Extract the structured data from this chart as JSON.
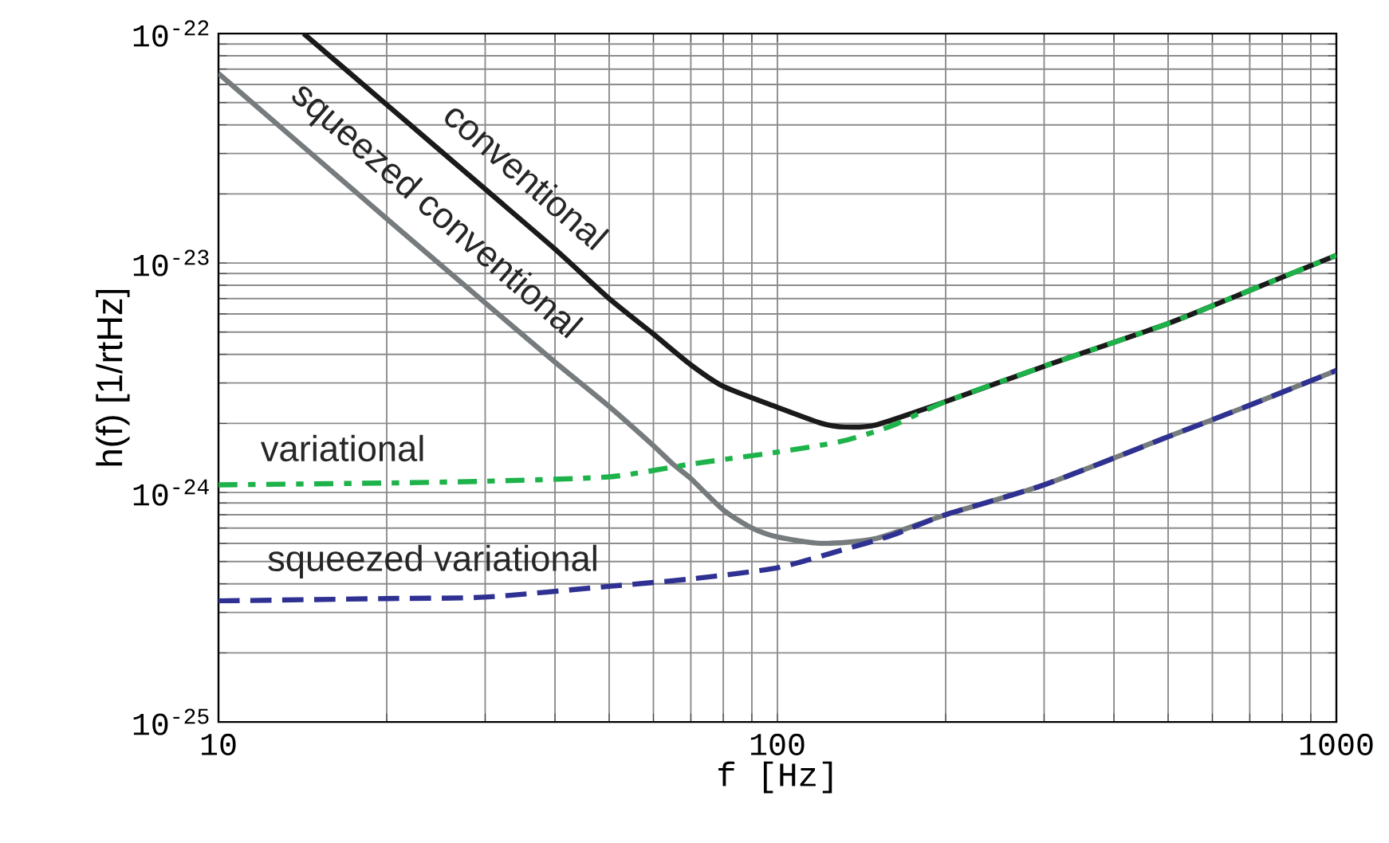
{
  "chart_data": {
    "type": "line",
    "xlabel": "f [Hz]",
    "ylabel": "h(f) [1/rtHz]",
    "log": "xy",
    "grid": true,
    "marker": "none",
    "xlim": [
      10,
      1000
    ],
    "xticks": [
      10,
      {
        "value": 20,
        "label": null
      },
      {
        "value": 30,
        "label": null
      },
      {
        "value": 40,
        "label": null
      },
      {
        "value": 50,
        "label": null
      },
      {
        "value": 60,
        "label": null
      },
      {
        "value": 70,
        "label": null
      },
      {
        "value": 80,
        "label": null
      },
      {
        "value": 90,
        "label": null
      },
      100,
      {
        "value": 200,
        "label": null
      },
      {
        "value": 300,
        "label": null
      },
      {
        "value": 400,
        "label": null
      },
      {
        "value": 500,
        "label": null
      },
      {
        "value": 600,
        "label": null
      },
      {
        "value": 700,
        "label": null
      },
      {
        "value": 800,
        "label": null
      },
      {
        "value": 900,
        "label": null
      },
      1000
    ],
    "ylim": [
      1e-25,
      1e-22
    ],
    "yticks": [
      {
        "value": 1e-25,
        "label": "10$^{-25}$"
      },
      {
        "value": 2e-25,
        "label": null
      },
      {
        "value": 3e-25,
        "label": null
      },
      {
        "value": 4e-25,
        "label": null
      },
      {
        "value": 5e-25,
        "label": null
      },
      {
        "value": 6e-25,
        "label": null
      },
      {
        "value": 7e-25,
        "label": null
      },
      {
        "value": 8e-25,
        "label": null
      },
      {
        "value": 9e-25,
        "label": null
      },
      {
        "value": 1e-24,
        "label": "10$^{-24}$"
      },
      {
        "value": 2e-24,
        "label": null
      },
      {
        "value": 3e-24,
        "label": null
      },
      {
        "value": 4e-24,
        "label": null
      },
      {
        "value": 5e-24,
        "label": null
      },
      {
        "value": 6e-24,
        "label": null
      },
      {
        "value": 7e-24,
        "label": null
      },
      {
        "value": 8e-24,
        "label": null
      },
      {
        "value": 9e-24,
        "label": null
      },
      {
        "value": 1e-23,
        "label": "10$^{-23}$"
      },
      {
        "value": 2e-23,
        "label": null
      },
      {
        "value": 3e-23,
        "label": null
      },
      {
        "value": 4e-23,
        "label": null
      },
      {
        "value": 5e-23,
        "label": null
      },
      {
        "value": 6e-23,
        "label": null
      },
      {
        "value": 7e-23,
        "label": null
      },
      {
        "value": 8e-23,
        "label": null
      },
      {
        "value": 9e-23,
        "label": null
      },
      {
        "value": 1e-22,
        "label": "10$^{-22}$"
      }
    ],
    "series": [
      {
        "name": "conventional",
        "color": "#1a1a1a",
        "line_style": "solid",
        "x": [
          14.2,
          20,
          30,
          40,
          50,
          60,
          70,
          80,
          100,
          120,
          132,
          150,
          200,
          300,
          500,
          700,
          1000
        ],
        "values": [
          1e-22,
          4.9e-23,
          2.1e-23,
          1.15e-23,
          7e-24,
          4.9e-24,
          3.6e-24,
          2.9e-24,
          2.35e-24,
          2e-24,
          1.93e-24,
          1.97e-24,
          2.49e-24,
          3.55e-24,
          5.45e-24,
          7.6e-24,
          1.08e-23
        ]
      },
      {
        "name": "squeezed conventional",
        "color": "#767b7d",
        "line_style": "solid",
        "x": [
          10,
          20,
          30,
          40,
          50,
          60,
          65,
          70,
          80,
          90,
          100,
          120,
          150,
          200,
          300,
          500,
          700,
          1000
        ],
        "values": [
          6.7e-23,
          1.56e-23,
          6.7e-24,
          3.7e-24,
          2.37e-24,
          1.6e-24,
          1.33e-24,
          1.15e-24,
          8.4e-25,
          7e-25,
          6.4e-25,
          6e-25,
          6.3e-25,
          8e-25,
          1.08e-24,
          1.75e-24,
          2.4e-24,
          3.4e-24
        ]
      },
      {
        "name": "variational",
        "color": "#1db34a",
        "line_style": "dashdot",
        "x": [
          10,
          20,
          30,
          50,
          70,
          100,
          130,
          160,
          200,
          300,
          500,
          700,
          1000
        ],
        "values": [
          1.08e-24,
          1.1e-24,
          1.12e-24,
          1.17e-24,
          1.33e-24,
          1.5e-24,
          1.67e-24,
          1.95e-24,
          2.49e-24,
          3.55e-24,
          5.45e-24,
          7.6e-24,
          1.08e-23
        ]
      },
      {
        "name": "squeezed variational",
        "color": "#2e3192",
        "line_style": "dashed",
        "x": [
          10,
          20,
          30,
          50,
          70,
          100,
          130,
          160,
          200,
          300,
          500,
          700,
          1000
        ],
        "values": [
          3.37e-25,
          3.45e-25,
          3.5e-25,
          3.9e-25,
          4.2e-25,
          4.7e-25,
          5.6e-25,
          6.5e-25,
          8e-25,
          1.08e-24,
          1.75e-24,
          2.4e-24,
          3.4e-24
        ]
      }
    ]
  }
}
